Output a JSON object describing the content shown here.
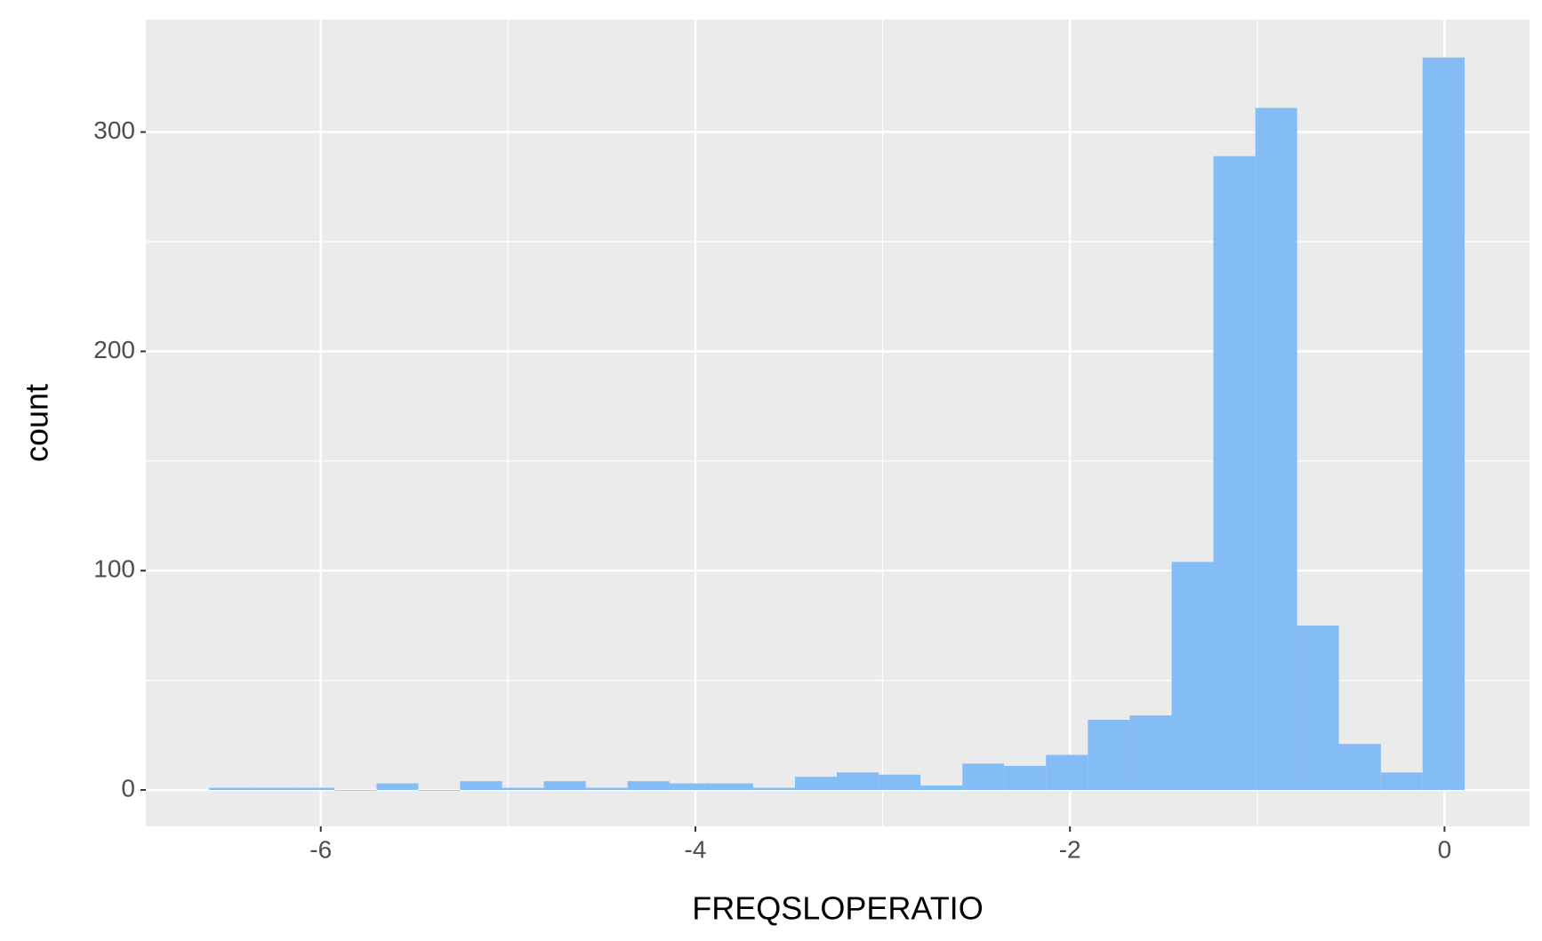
{
  "chart_data": {
    "type": "histogram",
    "x_label": "FREQSLOPERATIO",
    "y_label": "count",
    "bins": [
      -6.596,
      -6.373,
      -6.149,
      -5.926,
      -5.702,
      -5.479,
      -5.256,
      -5.032,
      -4.809,
      -4.585,
      -4.362,
      -4.138,
      -3.915,
      -3.692,
      -3.468,
      -3.245,
      -3.021,
      -2.798,
      -2.574,
      -2.351,
      -2.128,
      -1.904,
      -1.681,
      -1.457,
      -1.234,
      -1.01,
      -0.787,
      -0.564,
      -0.34,
      -0.117,
      0.107
    ],
    "values": [
      1,
      1,
      1,
      0,
      3,
      0,
      4,
      1,
      4,
      1,
      4,
      3,
      3,
      1,
      6,
      8,
      7,
      2,
      12,
      11,
      16,
      32,
      34,
      104,
      289,
      311,
      75,
      21,
      8,
      334
    ],
    "color": "#84bcf5",
    "xlim": [
      -6.934,
      0.454
    ],
    "ylim": [
      -16.6,
      351.3
    ],
    "xticks": [
      -6,
      -4,
      -2,
      0
    ],
    "yticks": [
      0,
      100,
      200,
      300
    ],
    "minor_xticks": [
      -5,
      -3,
      -1
    ],
    "minor_yticks": [
      50,
      150,
      250
    ],
    "grid": true
  }
}
